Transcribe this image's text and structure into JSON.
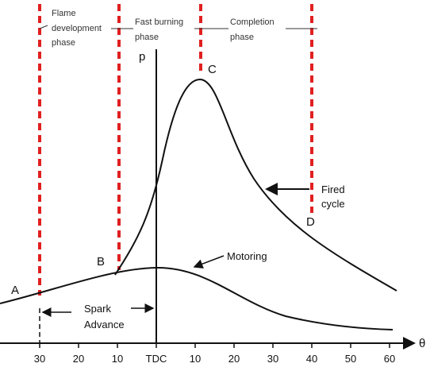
{
  "phases": [
    "Flame development phase",
    "Fast burning phase",
    "Completion phase"
  ],
  "phase_lines": [
    [
      "Flame",
      "development",
      "phase"
    ],
    [
      "Fast burning",
      "phase"
    ],
    [
      "Completion",
      "phase"
    ]
  ],
  "axes": {
    "y_label": "p",
    "x_label": "θ",
    "x_ticks": [
      "30",
      "20",
      "10",
      "TDC",
      "10",
      "20",
      "30",
      "40",
      "50",
      "60"
    ]
  },
  "points": [
    "A",
    "B",
    "C",
    "D"
  ],
  "curves": {
    "fired": [
      "Fired",
      "cycle"
    ],
    "motoring": "Motoring"
  },
  "spark_advance": [
    "Spark",
    "Advance"
  ]
}
